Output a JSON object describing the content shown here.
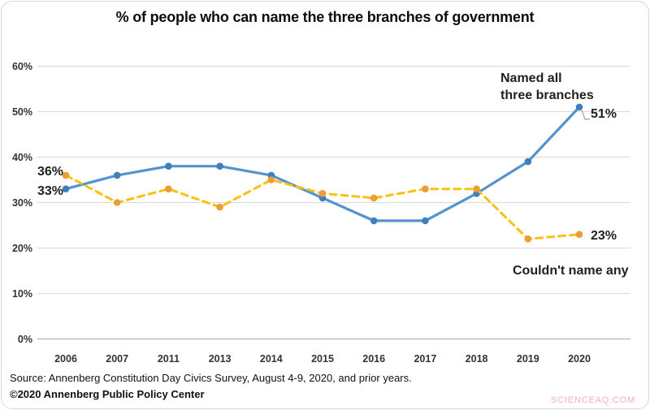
{
  "header": {
    "title": "% of people who can name the three branches of government"
  },
  "chart_data": {
    "type": "line",
    "title": "% of people who can name the three branches of government",
    "categories": [
      "2006",
      "2007",
      "2011",
      "2013",
      "2014",
      "2015",
      "2016",
      "2017",
      "2018",
      "2019",
      "2020"
    ],
    "series": [
      {
        "name": "Named all three branches",
        "values": [
          33,
          36,
          38,
          38,
          36,
          31,
          26,
          26,
          32,
          39,
          51
        ],
        "color": "#5294cf",
        "marker_color": "#3f7fbd",
        "line_style": "solid"
      },
      {
        "name": "Couldn't name any",
        "values": [
          36,
          30,
          33,
          29,
          35,
          32,
          31,
          33,
          33,
          22,
          23
        ],
        "color": "#fdc010",
        "marker_color": "#ec9d35",
        "line_style": "dashed"
      }
    ],
    "xlabel": "",
    "ylabel": "",
    "ylim": [
      0,
      60
    ],
    "yticks": [
      0,
      10,
      20,
      30,
      40,
      50,
      60
    ],
    "ytick_suffix": "%",
    "grid": "horizontal",
    "gridline_color": "#d9d9d9",
    "axis_line_color": "#bfbfbf",
    "legend_position": "inline-annotations"
  },
  "annotations": {
    "orange_start_label": "36%",
    "blue_start_label": "33%",
    "blue_series_label_line1": "Named all",
    "blue_series_label_line2": "three branches",
    "blue_end_label": "51%",
    "orange_end_label": "23%",
    "orange_series_label": "Couldn't name any"
  },
  "footer": {
    "source": "Source: Annenberg Constitution Day Civics Survey, August 4-9, 2020, and prior years.",
    "copyright": "©2020 Annenberg Public Policy Center"
  },
  "watermark": "SCIENCEAQ.COM"
}
